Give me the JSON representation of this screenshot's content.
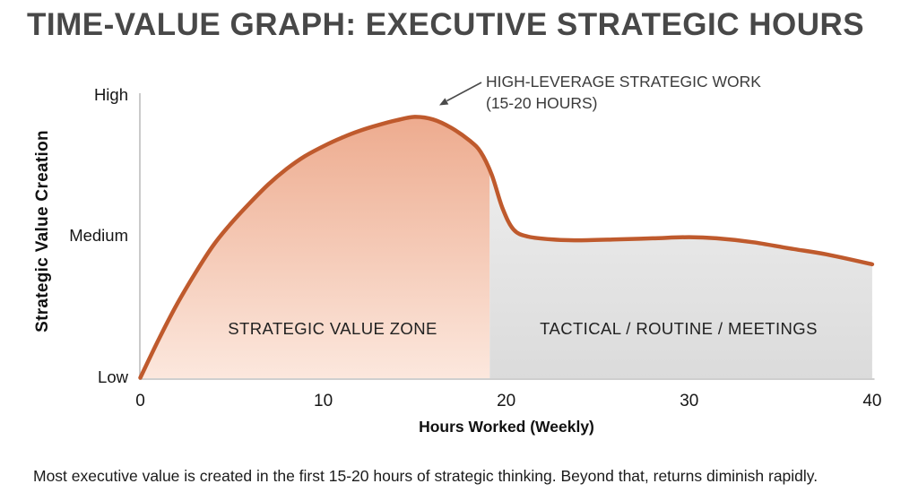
{
  "title": "TIME-VALUE GRAPH: EXECUTIVE STRATEGIC HOURS",
  "caption": "Most executive value is created in the first 15-20 hours of strategic thinking. Beyond that, returns diminish rapidly.",
  "chart_data": {
    "type": "area",
    "title": "TIME-VALUE GRAPH: EXECUTIVE STRATEGIC HOURS",
    "xlabel": "Hours Worked (Weekly)",
    "ylabel": "Strategic Value Creation",
    "x_ticks": [
      0,
      10,
      20,
      30,
      40
    ],
    "y_ticks": [
      {
        "label": "High",
        "value": 1
      },
      {
        "label": "Medium",
        "value": 0.5
      },
      {
        "label": "Low",
        "value": 0
      }
    ],
    "x_range": [
      0,
      40
    ],
    "grid": false,
    "legend": false,
    "line_color": "#bf5a2d",
    "axis_color": "#cbcbcb",
    "curve": [
      [
        0,
        0
      ],
      [
        1,
        0.135
      ],
      [
        2,
        0.26
      ],
      [
        3,
        0.37
      ],
      [
        4,
        0.47
      ],
      [
        5,
        0.55
      ],
      [
        6,
        0.62
      ],
      [
        7,
        0.685
      ],
      [
        8,
        0.74
      ],
      [
        9,
        0.785
      ],
      [
        10,
        0.82
      ],
      [
        11,
        0.85
      ],
      [
        12,
        0.875
      ],
      [
        13,
        0.895
      ],
      [
        14,
        0.912
      ],
      [
        15,
        0.924
      ],
      [
        16,
        0.915
      ],
      [
        17,
        0.885
      ],
      [
        18,
        0.84
      ],
      [
        18.6,
        0.8
      ],
      [
        19.2,
        0.72
      ],
      [
        19.8,
        0.6
      ],
      [
        20.4,
        0.525
      ],
      [
        21.2,
        0.5
      ],
      [
        22.5,
        0.49
      ],
      [
        24,
        0.487
      ],
      [
        26,
        0.49
      ],
      [
        28,
        0.494
      ],
      [
        30,
        0.498
      ],
      [
        31.5,
        0.494
      ],
      [
        33.5,
        0.48
      ],
      [
        35.5,
        0.458
      ],
      [
        37.5,
        0.437
      ],
      [
        40,
        0.402
      ]
    ],
    "peak": {
      "hours": 15,
      "value_label": "High-leverage peak"
    },
    "zone_boundary_hours": 19.1,
    "zones": [
      {
        "label": "STRATEGIC VALUE ZONE",
        "x_range": [
          0,
          19.1
        ],
        "fill_top": "#edaa8d",
        "fill_bottom": "#fce8de"
      },
      {
        "label": "TACTICAL / ROUTINE / MEETINGS",
        "x_range": [
          19.1,
          40
        ],
        "fill_top": "#efefef",
        "fill_bottom": "#dbdbdb"
      }
    ],
    "annotation": {
      "line1": "HIGH-LEVERAGE STRATEGIC WORK",
      "line2": "(15-20 HOURS)",
      "points_to": "curve peak"
    }
  }
}
